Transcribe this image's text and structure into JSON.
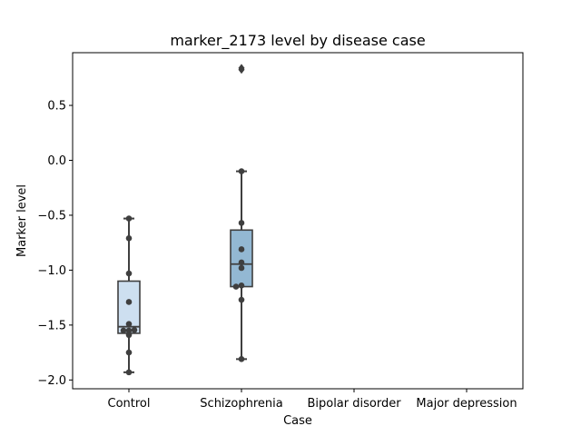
{
  "chart_data": {
    "type": "box",
    "title": "marker_2173 level by disease case",
    "xlabel": "Case",
    "ylabel": "Marker level",
    "categories": [
      "Control",
      "Schizophrenia",
      "Bipolar disorder",
      "Major depression"
    ],
    "ylim": [
      -2.08,
      0.98
    ],
    "yticks": [
      -2.0,
      -1.5,
      -1.0,
      -0.5,
      0.0,
      0.5
    ],
    "ytick_labels": [
      "−2.0",
      "−1.5",
      "−1.0",
      "−0.5",
      "0.0",
      "0.5"
    ],
    "grid": false,
    "boxes": [
      {
        "category": "Control",
        "whisker_low": -1.93,
        "q1": -1.575,
        "median": -1.515,
        "q3": -1.1,
        "whisker_high": -0.53,
        "outliers": [],
        "color": "#cddff0"
      },
      {
        "category": "Schizophrenia",
        "whisker_low": -1.81,
        "q1": -1.15,
        "median": -0.945,
        "q3": -0.635,
        "whisker_high": -0.1,
        "outliers": [
          0.84,
          0.825
        ],
        "color": "#93b8d3"
      }
    ],
    "points": [
      {
        "category": "Control",
        "values": [
          -0.53,
          -0.71,
          -1.03,
          -1.29,
          -1.49,
          -1.55,
          -1.55,
          -1.545,
          -1.59,
          -1.75,
          -1.93
        ]
      },
      {
        "category": "Schizophrenia",
        "values": [
          -0.1,
          -0.57,
          -0.81,
          -0.93,
          -0.98,
          -1.14,
          -1.15,
          -1.27,
          -1.81
        ]
      }
    ]
  },
  "colors": {
    "edge": "#3f3f3f",
    "points": "#3f3f3f"
  }
}
